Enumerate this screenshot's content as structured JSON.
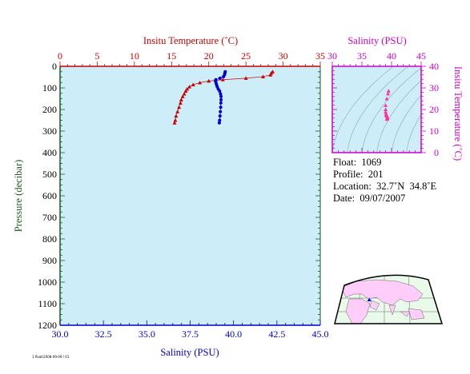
{
  "colors": {
    "temperature": "#cc0000",
    "salinity": "#0000cc",
    "pressure_axis": "#1a5c1a",
    "inset_axis": "#cc00cc",
    "plot_bg": "#cdeef8",
    "land": "#ffcdfa"
  },
  "float_info": {
    "float": "Float:  1069",
    "profile": "Profile:  201",
    "location": "Location:  32.7˚N  34.8˚E",
    "date": "Date:  09/07/2007"
  },
  "footer_text": "1 float/2008-09-09 / 01",
  "chart_data": [
    {
      "type": "line",
      "subtype": "vertical-profile",
      "x_top_label": "Insitu Temperature (˚C)",
      "x_top_ticks": [
        "0",
        "5",
        "10",
        "15",
        "20",
        "25",
        "30",
        "35"
      ],
      "x_top_range": [
        0,
        35
      ],
      "x_bottom_label": "Salinity (PSU)",
      "x_bottom_ticks": [
        "30.0",
        "32.5",
        "35.0",
        "37.5",
        "40.0",
        "42.5",
        "45.0"
      ],
      "x_bottom_range": [
        30,
        45
      ],
      "y_label": "Pressure (decibar)",
      "y_ticks": [
        "0",
        "100",
        "200",
        "300",
        "400",
        "500",
        "600",
        "700",
        "800",
        "900",
        "1000",
        "1100",
        "1200"
      ],
      "y_range": [
        0,
        1200
      ],
      "y_inverted": true,
      "grid": false,
      "series": [
        {
          "key": "temperature",
          "marker": "triangle",
          "axis": "top",
          "points": [
            {
              "x": 28.6,
              "y": 25
            },
            {
              "x": 28.4,
              "y": 32
            },
            {
              "x": 28.3,
              "y": 40
            },
            {
              "x": 27.3,
              "y": 48
            },
            {
              "x": 25.0,
              "y": 55
            },
            {
              "x": 21.9,
              "y": 62
            },
            {
              "x": 20.0,
              "y": 68
            },
            {
              "x": 18.8,
              "y": 76
            },
            {
              "x": 17.9,
              "y": 85
            },
            {
              "x": 17.4,
              "y": 95
            },
            {
              "x": 17.1,
              "y": 105
            },
            {
              "x": 16.9,
              "y": 115
            },
            {
              "x": 16.7,
              "y": 128
            },
            {
              "x": 16.5,
              "y": 140
            },
            {
              "x": 16.3,
              "y": 155
            },
            {
              "x": 16.2,
              "y": 170
            },
            {
              "x": 16.0,
              "y": 190
            },
            {
              "x": 15.8,
              "y": 210
            },
            {
              "x": 15.6,
              "y": 230
            },
            {
              "x": 15.5,
              "y": 250
            },
            {
              "x": 15.4,
              "y": 262
            }
          ]
        },
        {
          "key": "salinity",
          "marker": "circle",
          "axis": "bottom",
          "points": [
            {
              "x": 39.52,
              "y": 25
            },
            {
              "x": 39.5,
              "y": 32
            },
            {
              "x": 39.48,
              "y": 40
            },
            {
              "x": 39.42,
              "y": 48
            },
            {
              "x": 39.22,
              "y": 55
            },
            {
              "x": 38.98,
              "y": 62
            },
            {
              "x": 38.96,
              "y": 68
            },
            {
              "x": 38.99,
              "y": 76
            },
            {
              "x": 39.02,
              "y": 85
            },
            {
              "x": 39.06,
              "y": 95
            },
            {
              "x": 39.12,
              "y": 105
            },
            {
              "x": 39.2,
              "y": 115
            },
            {
              "x": 39.25,
              "y": 128
            },
            {
              "x": 39.28,
              "y": 140
            },
            {
              "x": 39.28,
              "y": 155
            },
            {
              "x": 39.27,
              "y": 170
            },
            {
              "x": 39.26,
              "y": 190
            },
            {
              "x": 39.24,
              "y": 210
            },
            {
              "x": 39.22,
              "y": 230
            },
            {
              "x": 39.2,
              "y": 250
            },
            {
              "x": 39.18,
              "y": 262
            }
          ]
        }
      ]
    },
    {
      "type": "scatter",
      "subtype": "t-s-diagram",
      "x_label": "Salinity (PSU)",
      "x_ticks": [
        "30",
        "35",
        "40",
        "45"
      ],
      "x_range": [
        30,
        45
      ],
      "y_label": "Insitu Temperature (˚C)",
      "y_ticks": [
        "0",
        "10",
        "20",
        "30",
        "40"
      ],
      "y_range": [
        0,
        40
      ],
      "density_contours": true,
      "points": [
        {
          "x": 39.5,
          "y": 28.6
        },
        {
          "x": 39.4,
          "y": 27.3
        },
        {
          "x": 39.2,
          "y": 25.0
        },
        {
          "x": 39.0,
          "y": 21.9
        },
        {
          "x": 39.0,
          "y": 20.0
        },
        {
          "x": 39.0,
          "y": 18.8
        },
        {
          "x": 39.1,
          "y": 17.9
        },
        {
          "x": 39.1,
          "y": 17.4
        },
        {
          "x": 39.2,
          "y": 17.1
        },
        {
          "x": 39.2,
          "y": 16.9
        },
        {
          "x": 39.3,
          "y": 16.5
        },
        {
          "x": 39.3,
          "y": 16.2
        },
        {
          "x": 39.3,
          "y": 15.8
        },
        {
          "x": 39.2,
          "y": 15.5
        }
      ]
    }
  ]
}
